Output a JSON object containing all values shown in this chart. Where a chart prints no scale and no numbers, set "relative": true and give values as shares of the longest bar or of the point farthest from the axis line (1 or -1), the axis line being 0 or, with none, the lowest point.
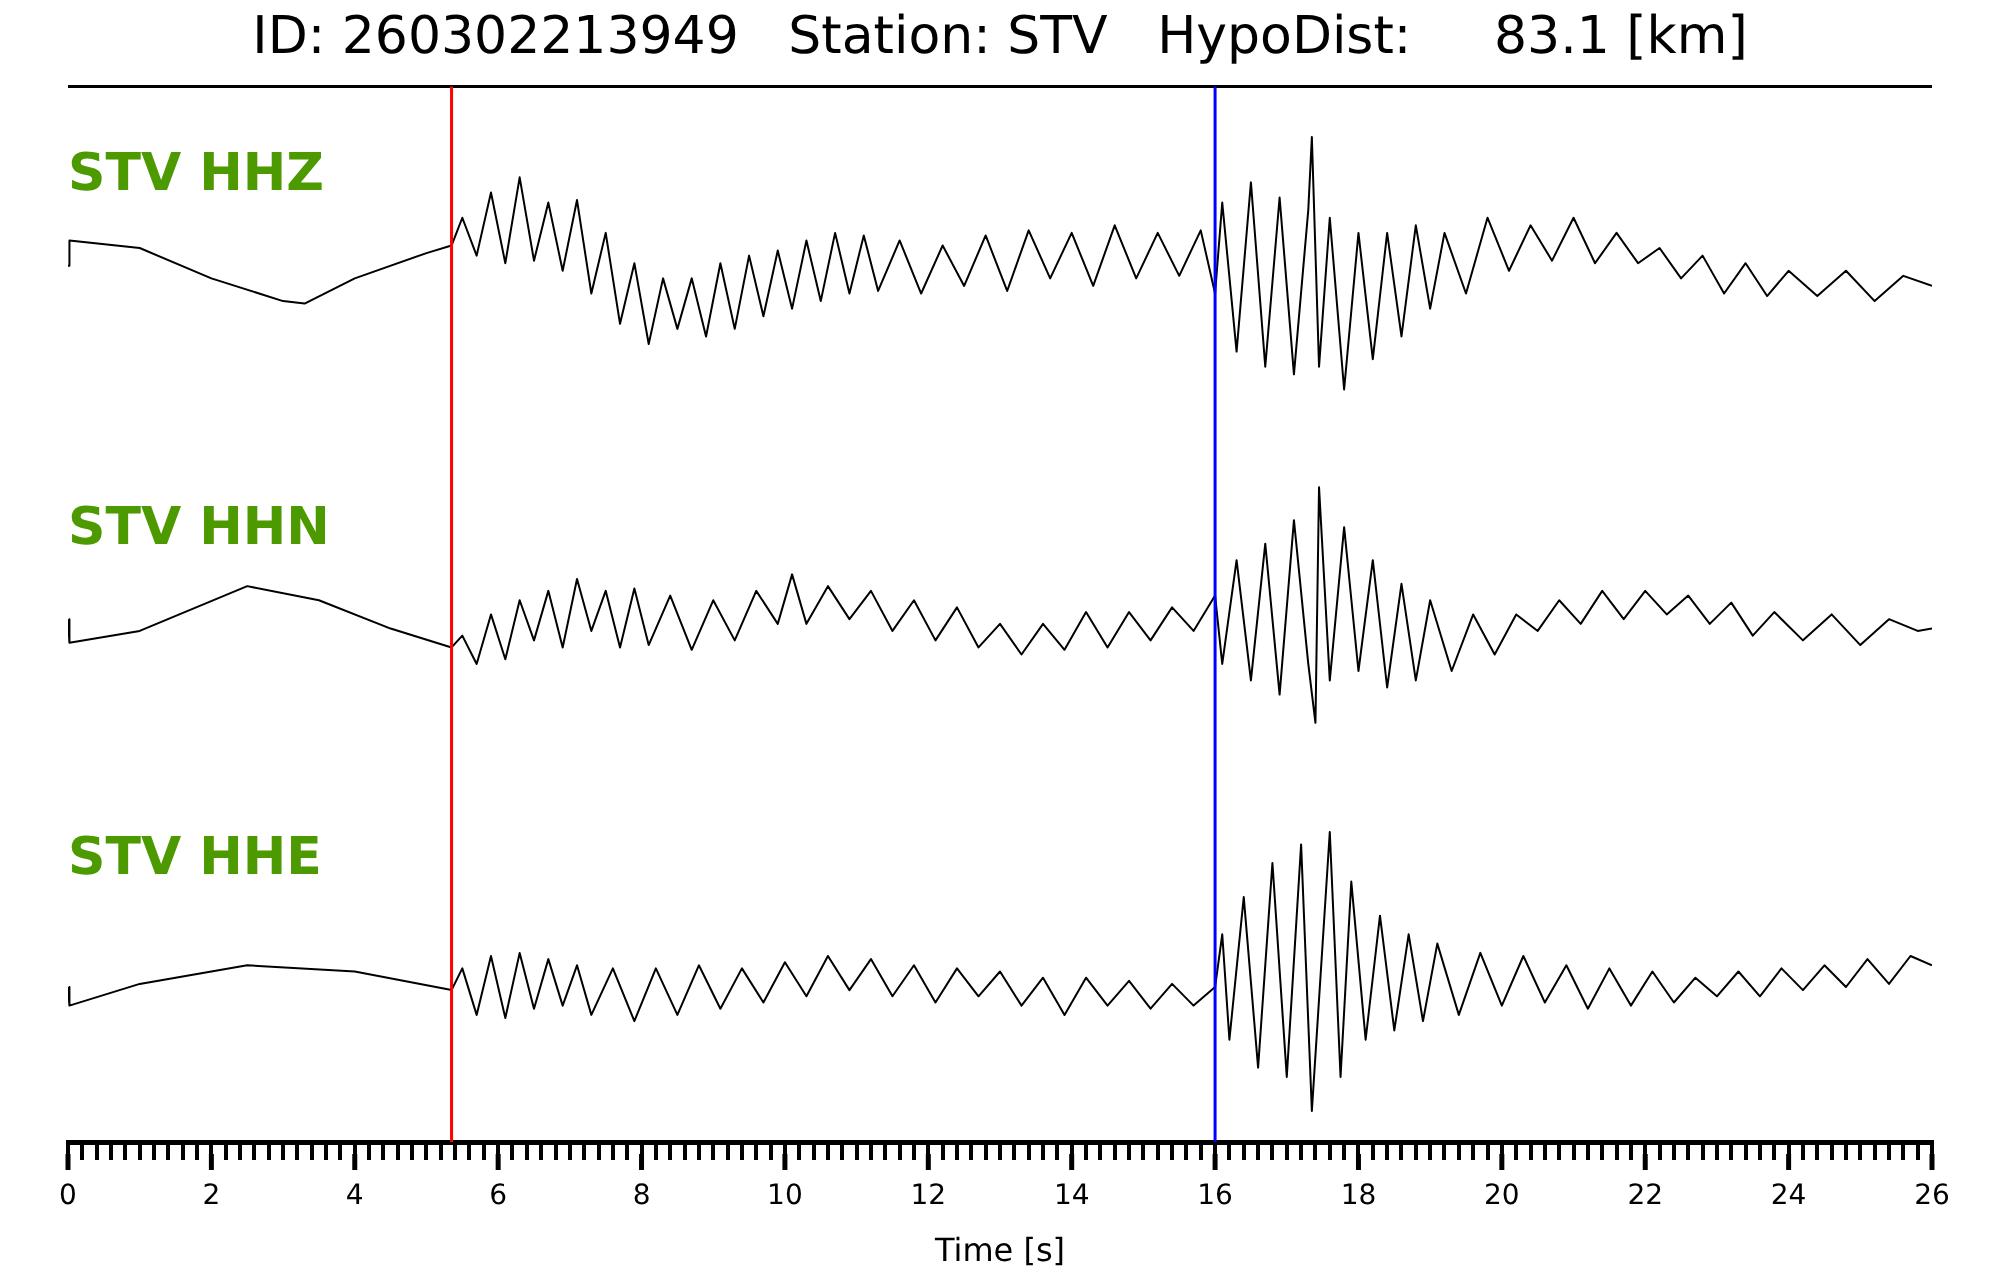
{
  "chart_data": [
    {
      "type": "line",
      "title": "ID: 260302213949   Station: STV   HypoDist:     83.1 [km]",
      "relative": true,
      "xlim": [
        0,
        26
      ],
      "tick_labels": false,
      "ref_lines": [
        {
          "axis": "x",
          "value": 5.35,
          "color": "#ff0000"
        },
        {
          "axis": "x",
          "value": 16,
          "color": "#0000ff"
        }
      ],
      "series": [
        {
          "name": "STV HHZ",
          "color": "#000000",
          "x": [
            0,
            0.02,
            1,
            2,
            3,
            3.3,
            4,
            5,
            5.35,
            5.5,
            5.7,
            5.9,
            6.1,
            6.3,
            6.5,
            6.7,
            6.9,
            7.1,
            7.3,
            7.5,
            7.7,
            7.9,
            8.1,
            8.3,
            8.5,
            8.7,
            8.9,
            9.1,
            9.3,
            9.5,
            9.7,
            9.9,
            10.1,
            10.3,
            10.5,
            10.7,
            10.9,
            11.1,
            11.3,
            11.6,
            11.9,
            12.2,
            12.5,
            12.8,
            13.1,
            13.4,
            13.7,
            14,
            14.3,
            14.6,
            14.9,
            15.2,
            15.5,
            15.8,
            16,
            16.1,
            16.3,
            16.5,
            16.7,
            16.9,
            17.1,
            17.3,
            17.35,
            17.45,
            17.6,
            17.8,
            18,
            18.2,
            18.4,
            18.6,
            18.8,
            19,
            19.2,
            19.5,
            19.8,
            20.1,
            20.4,
            20.7,
            21,
            21.3,
            21.6,
            21.9,
            22.2,
            22.5,
            22.8,
            23.1,
            23.4,
            23.7,
            24,
            24.4,
            24.8,
            25.2,
            25.6,
            26
          ],
          "values": [
            0.49,
            0.59,
            0.56,
            0.44,
            0.35,
            0.34,
            0.44,
            0.54,
            0.57,
            0.68,
            0.53,
            0.78,
            0.5,
            0.84,
            0.51,
            0.74,
            0.47,
            0.75,
            0.38,
            0.62,
            0.26,
            0.5,
            0.18,
            0.44,
            0.24,
            0.44,
            0.21,
            0.5,
            0.24,
            0.53,
            0.29,
            0.55,
            0.32,
            0.59,
            0.35,
            0.62,
            0.38,
            0.61,
            0.39,
            0.59,
            0.38,
            0.57,
            0.41,
            0.61,
            0.39,
            0.63,
            0.44,
            0.62,
            0.41,
            0.65,
            0.44,
            0.62,
            0.45,
            0.63,
            0.38,
            0.74,
            0.15,
            0.82,
            0.09,
            0.76,
            0.06,
            0.71,
            1,
            0.09,
            0.68,
            0,
            0.62,
            0.12,
            0.62,
            0.21,
            0.65,
            0.32,
            0.62,
            0.38,
            0.68,
            0.47,
            0.65,
            0.51,
            0.68,
            0.5,
            0.62,
            0.5,
            0.56,
            0.44,
            0.53,
            0.38,
            0.5,
            0.37,
            0.47,
            0.37,
            0.47,
            0.35,
            0.45,
            0.41
          ]
        }
      ]
    },
    {
      "type": "line",
      "relative": true,
      "xlim": [
        0,
        26
      ],
      "tick_labels": false,
      "ref_lines": [
        {
          "axis": "x",
          "value": 5.35,
          "color": "#ff0000"
        },
        {
          "axis": "x",
          "value": 16,
          "color": "#0000ff"
        }
      ],
      "series": [
        {
          "name": "STV HHN",
          "color": "#000000",
          "x": [
            0,
            0.02,
            1,
            2.5,
            3.5,
            4.5,
            5.35,
            5.5,
            5.7,
            5.9,
            6.1,
            6.3,
            6.5,
            6.7,
            6.9,
            7.1,
            7.3,
            7.5,
            7.7,
            7.9,
            8.1,
            8.4,
            8.7,
            9,
            9.3,
            9.6,
            9.9,
            10.1,
            10.3,
            10.6,
            10.9,
            11.2,
            11.5,
            11.8,
            12.1,
            12.4,
            12.7,
            13,
            13.3,
            13.6,
            13.9,
            14.2,
            14.5,
            14.8,
            15.1,
            15.4,
            15.7,
            16,
            16.1,
            16.3,
            16.5,
            16.7,
            16.9,
            17.1,
            17.3,
            17.4,
            17.45,
            17.6,
            17.8,
            18,
            18.2,
            18.4,
            18.6,
            18.8,
            19,
            19.3,
            19.6,
            19.9,
            20.2,
            20.5,
            20.8,
            21.1,
            21.4,
            21.7,
            22,
            22.3,
            22.6,
            22.9,
            23.2,
            23.5,
            23.8,
            24.2,
            24.6,
            25,
            25.4,
            25.8,
            26
          ],
          "values": [
            0.44,
            0.34,
            0.39,
            0.58,
            0.52,
            0.4,
            0.32,
            0.37,
            0.25,
            0.46,
            0.27,
            0.52,
            0.35,
            0.56,
            0.32,
            0.61,
            0.39,
            0.56,
            0.32,
            0.57,
            0.33,
            0.54,
            0.31,
            0.52,
            0.35,
            0.56,
            0.42,
            0.63,
            0.42,
            0.58,
            0.44,
            0.56,
            0.39,
            0.52,
            0.35,
            0.49,
            0.32,
            0.42,
            0.29,
            0.42,
            0.31,
            0.47,
            0.32,
            0.47,
            0.35,
            0.49,
            0.39,
            0.54,
            0.25,
            0.69,
            0.18,
            0.76,
            0.12,
            0.86,
            0.25,
            0,
            1,
            0.18,
            0.83,
            0.22,
            0.69,
            0.15,
            0.59,
            0.18,
            0.52,
            0.22,
            0.46,
            0.29,
            0.46,
            0.39,
            0.52,
            0.42,
            0.56,
            0.44,
            0.56,
            0.46,
            0.54,
            0.42,
            0.51,
            0.37,
            0.47,
            0.35,
            0.46,
            0.33,
            0.44,
            0.39,
            0.4
          ]
        }
      ]
    },
    {
      "type": "line",
      "relative": true,
      "xlim": [
        0,
        26
      ],
      "xlabel": "Time [s]",
      "tick_labels": "x",
      "ref_lines": [
        {
          "axis": "x",
          "value": 5.35,
          "color": "#ff0000"
        },
        {
          "axis": "x",
          "value": 16,
          "color": "#0000ff"
        }
      ],
      "xticks": [
        0,
        {
          "value": 0.2,
          "label": null
        },
        {
          "value": 0.4,
          "label": null
        },
        {
          "value": 0.6,
          "label": null
        },
        {
          "value": 0.8,
          "label": null
        },
        {
          "value": 1,
          "label": null
        },
        {
          "value": 1.2,
          "label": null
        },
        {
          "value": 1.4,
          "label": null
        },
        {
          "value": 1.6,
          "label": null
        },
        {
          "value": 1.8,
          "label": null
        },
        2,
        {
          "value": 2.2,
          "label": null
        },
        {
          "value": 2.4,
          "label": null
        },
        {
          "value": 2.6,
          "label": null
        },
        {
          "value": 2.8,
          "label": null
        },
        {
          "value": 3,
          "label": null
        },
        {
          "value": 3.2,
          "label": null
        },
        {
          "value": 3.4,
          "label": null
        },
        {
          "value": 3.6,
          "label": null
        },
        {
          "value": 3.8,
          "label": null
        },
        4,
        {
          "value": 4.2,
          "label": null
        },
        {
          "value": 4.4,
          "label": null
        },
        {
          "value": 4.6,
          "label": null
        },
        {
          "value": 4.8,
          "label": null
        },
        {
          "value": 5,
          "label": null
        },
        {
          "value": 5.2,
          "label": null
        },
        {
          "value": 5.4,
          "label": null
        },
        {
          "value": 5.6,
          "label": null
        },
        {
          "value": 5.8,
          "label": null
        },
        6,
        {
          "value": 6.2,
          "label": null
        },
        {
          "value": 6.4,
          "label": null
        },
        {
          "value": 6.6,
          "label": null
        },
        {
          "value": 6.8,
          "label": null
        },
        {
          "value": 7,
          "label": null
        },
        {
          "value": 7.2,
          "label": null
        },
        {
          "value": 7.4,
          "label": null
        },
        {
          "value": 7.6,
          "label": null
        },
        {
          "value": 7.8,
          "label": null
        },
        8,
        {
          "value": 8.2,
          "label": null
        },
        {
          "value": 8.4,
          "label": null
        },
        {
          "value": 8.6,
          "label": null
        },
        {
          "value": 8.8,
          "label": null
        },
        {
          "value": 9,
          "label": null
        },
        {
          "value": 9.2,
          "label": null
        },
        {
          "value": 9.4,
          "label": null
        },
        {
          "value": 9.6,
          "label": null
        },
        {
          "value": 9.8,
          "label": null
        },
        10,
        {
          "value": 10.2,
          "label": null
        },
        {
          "value": 10.4,
          "label": null
        },
        {
          "value": 10.6,
          "label": null
        },
        {
          "value": 10.8,
          "label": null
        },
        {
          "value": 11,
          "label": null
        },
        {
          "value": 11.2,
          "label": null
        },
        {
          "value": 11.4,
          "label": null
        },
        {
          "value": 11.6,
          "label": null
        },
        {
          "value": 11.8,
          "label": null
        },
        12,
        {
          "value": 12.2,
          "label": null
        },
        {
          "value": 12.4,
          "label": null
        },
        {
          "value": 12.6,
          "label": null
        },
        {
          "value": 12.8,
          "label": null
        },
        {
          "value": 13,
          "label": null
        },
        {
          "value": 13.2,
          "label": null
        },
        {
          "value": 13.4,
          "label": null
        },
        {
          "value": 13.6,
          "label": null
        },
        {
          "value": 13.8,
          "label": null
        },
        14,
        {
          "value": 14.2,
          "label": null
        },
        {
          "value": 14.4,
          "label": null
        },
        {
          "value": 14.6,
          "label": null
        },
        {
          "value": 14.8,
          "label": null
        },
        {
          "value": 15,
          "label": null
        },
        {
          "value": 15.2,
          "label": null
        },
        {
          "value": 15.4,
          "label": null
        },
        {
          "value": 15.6,
          "label": null
        },
        {
          "value": 15.8,
          "label": null
        },
        16,
        {
          "value": 16.2,
          "label": null
        },
        {
          "value": 16.4,
          "label": null
        },
        {
          "value": 16.6,
          "label": null
        },
        {
          "value": 16.8,
          "label": null
        },
        {
          "value": 17,
          "label": null
        },
        {
          "value": 17.2,
          "label": null
        },
        {
          "value": 17.4,
          "label": null
        },
        {
          "value": 17.6,
          "label": null
        },
        {
          "value": 17.8,
          "label": null
        },
        18,
        {
          "value": 18.2,
          "label": null
        },
        {
          "value": 18.4,
          "label": null
        },
        {
          "value": 18.6,
          "label": null
        },
        {
          "value": 18.8,
          "label": null
        },
        {
          "value": 19,
          "label": null
        },
        {
          "value": 19.2,
          "label": null
        },
        {
          "value": 19.4,
          "label": null
        },
        {
          "value": 19.6,
          "label": null
        },
        {
          "value": 19.8,
          "label": null
        },
        20,
        {
          "value": 20.2,
          "label": null
        },
        {
          "value": 20.4,
          "label": null
        },
        {
          "value": 20.6,
          "label": null
        },
        {
          "value": 20.8,
          "label": null
        },
        {
          "value": 21,
          "label": null
        },
        {
          "value": 21.2,
          "label": null
        },
        {
          "value": 21.4,
          "label": null
        },
        {
          "value": 21.6,
          "label": null
        },
        {
          "value": 21.8,
          "label": null
        },
        22,
        {
          "value": 22.2,
          "label": null
        },
        {
          "value": 22.4,
          "label": null
        },
        {
          "value": 22.6,
          "label": null
        },
        {
          "value": 22.8,
          "label": null
        },
        {
          "value": 23,
          "label": null
        },
        {
          "value": 23.2,
          "label": null
        },
        {
          "value": 23.4,
          "label": null
        },
        {
          "value": 23.6,
          "label": null
        },
        {
          "value": 23.8,
          "label": null
        },
        24,
        {
          "value": 24.2,
          "label": null
        },
        {
          "value": 24.4,
          "label": null
        },
        {
          "value": 24.6,
          "label": null
        },
        {
          "value": 24.8,
          "label": null
        },
        {
          "value": 25,
          "label": null
        },
        {
          "value": 25.2,
          "label": null
        },
        {
          "value": 25.4,
          "label": null
        },
        {
          "value": 25.6,
          "label": null
        },
        {
          "value": 25.8,
          "label": null
        },
        26
      ],
      "series": [
        {
          "name": "STV HHE",
          "color": "#000000",
          "x": [
            0,
            0.02,
            1,
            2.5,
            4,
            5.35,
            5.5,
            5.7,
            5.9,
            6.1,
            6.3,
            6.5,
            6.7,
            6.9,
            7.1,
            7.3,
            7.6,
            7.9,
            8.2,
            8.5,
            8.8,
            9.1,
            9.4,
            9.7,
            10,
            10.3,
            10.6,
            10.9,
            11.2,
            11.5,
            11.8,
            12.1,
            12.4,
            12.7,
            13,
            13.3,
            13.6,
            13.9,
            14.2,
            14.5,
            14.8,
            15.1,
            15.4,
            15.7,
            16,
            16.1,
            16.2,
            16.4,
            16.6,
            16.8,
            17,
            17.2,
            17.35,
            17.6,
            17.75,
            17.9,
            18.1,
            18.3,
            18.5,
            18.7,
            18.9,
            19.1,
            19.4,
            19.7,
            20,
            20.3,
            20.6,
            20.9,
            21.2,
            21.5,
            21.8,
            22.1,
            22.4,
            22.7,
            23,
            23.3,
            23.6,
            23.9,
            24.2,
            24.5,
            24.8,
            25.1,
            25.4,
            25.7,
            26
          ],
          "values": [
            0.5,
            0.44,
            0.51,
            0.57,
            0.55,
            0.49,
            0.56,
            0.41,
            0.6,
            0.4,
            0.61,
            0.43,
            0.59,
            0.44,
            0.57,
            0.41,
            0.56,
            0.39,
            0.56,
            0.41,
            0.57,
            0.43,
            0.56,
            0.45,
            0.58,
            0.47,
            0.6,
            0.49,
            0.59,
            0.47,
            0.57,
            0.45,
            0.56,
            0.47,
            0.55,
            0.44,
            0.53,
            0.41,
            0.53,
            0.44,
            0.52,
            0.43,
            0.51,
            0.44,
            0.5,
            0.67,
            0.33,
            0.79,
            0.24,
            0.9,
            0.21,
            0.96,
            0.1,
            1,
            0.21,
            0.84,
            0.33,
            0.73,
            0.36,
            0.67,
            0.39,
            0.64,
            0.41,
            0.61,
            0.44,
            0.6,
            0.45,
            0.57,
            0.43,
            0.56,
            0.44,
            0.55,
            0.45,
            0.53,
            0.47,
            0.55,
            0.47,
            0.56,
            0.49,
            0.57,
            0.5,
            0.59,
            0.51,
            0.6,
            0.57
          ]
        }
      ]
    }
  ]
}
